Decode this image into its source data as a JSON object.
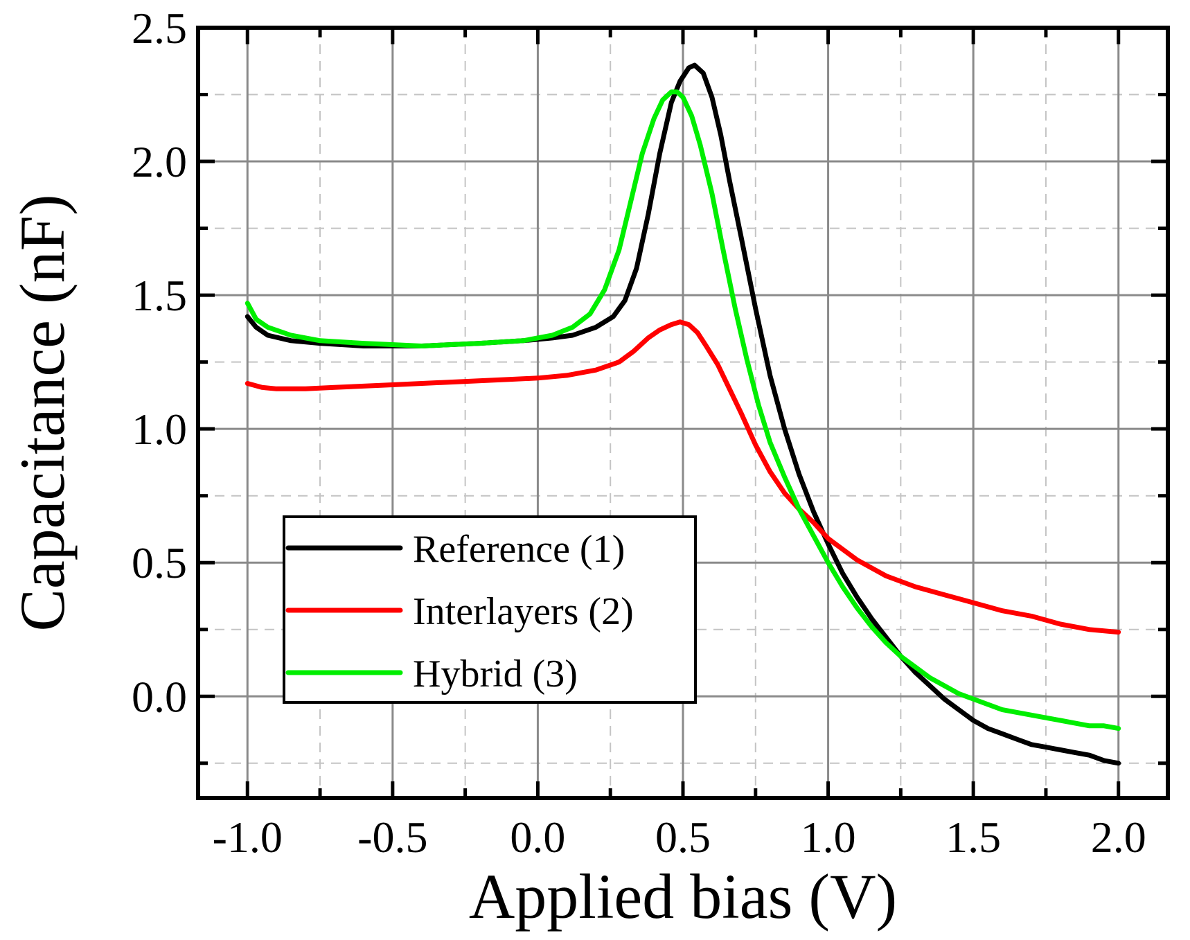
{
  "chart_data": {
    "type": "line",
    "title": "",
    "xlabel": "Applied bias (V)",
    "ylabel": "Capacitance (nF)",
    "xlim": [
      -1.17,
      2.17
    ],
    "ylim": [
      -0.38,
      2.5
    ],
    "x_ticks": [
      -1.0,
      -0.5,
      0.0,
      0.5,
      1.0,
      1.5,
      2.0
    ],
    "x_tick_labels": [
      "-1.0",
      "-0.5",
      "0.0",
      "0.5",
      "1.0",
      "1.5",
      "2.0"
    ],
    "y_ticks": [
      0.0,
      0.5,
      1.0,
      1.5,
      2.0,
      2.5
    ],
    "y_tick_labels": [
      "0.0",
      "0.5",
      "1.0",
      "1.5",
      "2.0",
      "2.5"
    ],
    "x_minor_ticks": [
      -0.75,
      -0.25,
      0.25,
      0.75,
      1.25,
      1.75
    ],
    "y_minor_ticks": [
      -0.25,
      0.25,
      0.75,
      1.25,
      1.75,
      2.25
    ],
    "grid": true,
    "legend_position": "bottom-left",
    "series": [
      {
        "name": "Reference (1)",
        "color": "#000000",
        "x": [
          -1.0,
          -0.97,
          -0.93,
          -0.85,
          -0.75,
          -0.6,
          -0.4,
          -0.2,
          -0.05,
          0.05,
          0.12,
          0.2,
          0.26,
          0.3,
          0.34,
          0.38,
          0.42,
          0.46,
          0.49,
          0.52,
          0.54,
          0.57,
          0.6,
          0.63,
          0.66,
          0.7,
          0.75,
          0.8,
          0.85,
          0.9,
          0.95,
          1.0,
          1.05,
          1.1,
          1.15,
          1.2,
          1.25,
          1.3,
          1.35,
          1.4,
          1.45,
          1.5,
          1.55,
          1.6,
          1.65,
          1.7,
          1.75,
          1.8,
          1.85,
          1.9,
          1.95,
          2.0
        ],
        "values": [
          1.42,
          1.38,
          1.35,
          1.33,
          1.32,
          1.31,
          1.31,
          1.32,
          1.33,
          1.34,
          1.35,
          1.38,
          1.42,
          1.48,
          1.6,
          1.8,
          2.03,
          2.22,
          2.3,
          2.35,
          2.36,
          2.33,
          2.24,
          2.1,
          1.93,
          1.72,
          1.45,
          1.2,
          1.0,
          0.83,
          0.69,
          0.57,
          0.46,
          0.37,
          0.29,
          0.22,
          0.15,
          0.09,
          0.04,
          -0.01,
          -0.05,
          -0.09,
          -0.12,
          -0.14,
          -0.16,
          -0.18,
          -0.19,
          -0.2,
          -0.21,
          -0.22,
          -0.24,
          -0.25
        ]
      },
      {
        "name": "Interlayers (2)",
        "color": "#ff0000",
        "x": [
          -1.0,
          -0.95,
          -0.9,
          -0.8,
          -0.7,
          -0.5,
          -0.3,
          -0.1,
          0.0,
          0.1,
          0.2,
          0.28,
          0.33,
          0.38,
          0.42,
          0.46,
          0.49,
          0.52,
          0.55,
          0.58,
          0.62,
          0.66,
          0.7,
          0.75,
          0.8,
          0.85,
          0.9,
          0.95,
          1.0,
          1.05,
          1.1,
          1.2,
          1.3,
          1.4,
          1.5,
          1.6,
          1.7,
          1.8,
          1.9,
          2.0
        ],
        "values": [
          1.17,
          1.155,
          1.15,
          1.15,
          1.155,
          1.165,
          1.175,
          1.185,
          1.19,
          1.2,
          1.22,
          1.25,
          1.29,
          1.34,
          1.37,
          1.39,
          1.4,
          1.39,
          1.36,
          1.31,
          1.24,
          1.15,
          1.06,
          0.94,
          0.84,
          0.76,
          0.7,
          0.65,
          0.59,
          0.55,
          0.51,
          0.45,
          0.41,
          0.38,
          0.35,
          0.32,
          0.3,
          0.27,
          0.25,
          0.24
        ]
      },
      {
        "name": "Hybrid (3)",
        "color": "#00ee00",
        "x": [
          -1.0,
          -0.97,
          -0.93,
          -0.85,
          -0.75,
          -0.6,
          -0.4,
          -0.2,
          -0.05,
          0.05,
          0.12,
          0.18,
          0.23,
          0.28,
          0.32,
          0.36,
          0.4,
          0.43,
          0.46,
          0.48,
          0.5,
          0.53,
          0.56,
          0.6,
          0.64,
          0.68,
          0.72,
          0.76,
          0.8,
          0.85,
          0.9,
          0.95,
          1.0,
          1.05,
          1.1,
          1.15,
          1.2,
          1.25,
          1.3,
          1.35,
          1.4,
          1.45,
          1.5,
          1.55,
          1.6,
          1.65,
          1.7,
          1.75,
          1.8,
          1.85,
          1.9,
          1.95,
          2.0
        ],
        "values": [
          1.47,
          1.41,
          1.38,
          1.35,
          1.33,
          1.32,
          1.31,
          1.32,
          1.33,
          1.35,
          1.38,
          1.43,
          1.52,
          1.67,
          1.85,
          2.03,
          2.16,
          2.23,
          2.26,
          2.26,
          2.24,
          2.17,
          2.06,
          1.88,
          1.66,
          1.45,
          1.26,
          1.09,
          0.95,
          0.82,
          0.7,
          0.6,
          0.5,
          0.41,
          0.33,
          0.26,
          0.2,
          0.15,
          0.11,
          0.07,
          0.04,
          0.01,
          -0.01,
          -0.03,
          -0.05,
          -0.06,
          -0.07,
          -0.08,
          -0.09,
          -0.1,
          -0.11,
          -0.11,
          -0.12
        ]
      }
    ]
  }
}
